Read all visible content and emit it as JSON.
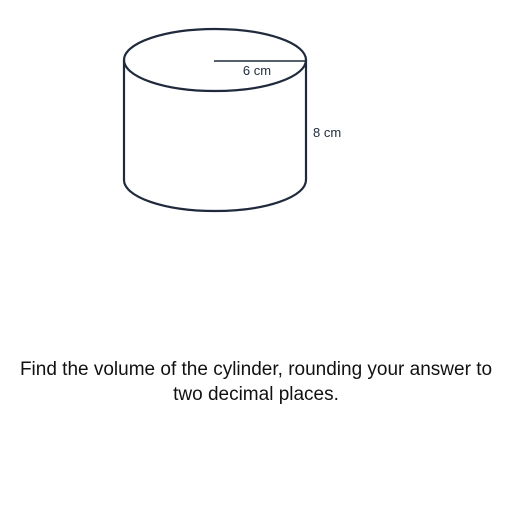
{
  "diagram": {
    "shape": "cylinder",
    "radius_label": "6 cm",
    "height_label": "8 cm",
    "stroke_color": "#1f2a3c"
  },
  "question": {
    "text": "Find the volume of the cylinder, rounding your answer to two decimal places."
  }
}
